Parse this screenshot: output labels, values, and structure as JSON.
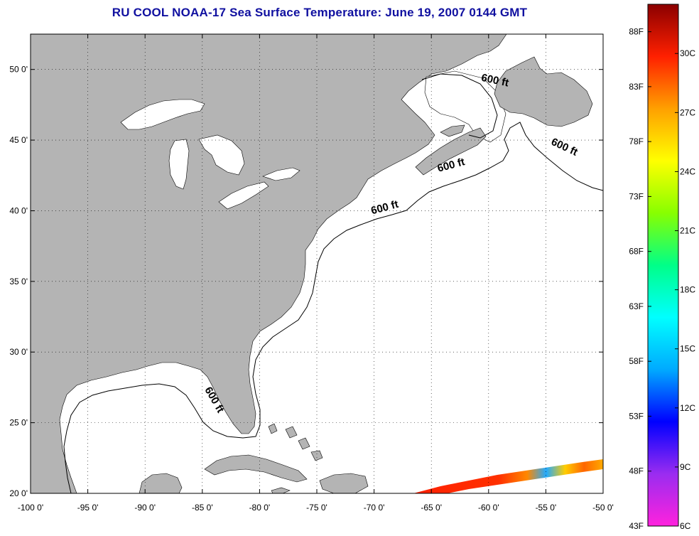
{
  "title": "RU COOL  NOAA-17  Sea Surface Temperature:  June 19, 2007 0144 GMT",
  "map": {
    "lon_range": [
      -100,
      -50
    ],
    "lat_range": [
      20,
      52.5
    ],
    "x_ticks": [
      {
        "value": -100,
        "label": "-100 0'"
      },
      {
        "value": -95,
        "label": "-95 0'"
      },
      {
        "value": -90,
        "label": "-90 0'"
      },
      {
        "value": -85,
        "label": "-85 0'"
      },
      {
        "value": -80,
        "label": "-80 0'"
      },
      {
        "value": -75,
        "label": "-75 0'"
      },
      {
        "value": -70,
        "label": "-70 0'"
      },
      {
        "value": -65,
        "label": "-65 0'"
      },
      {
        "value": -60,
        "label": "-60 0'"
      },
      {
        "value": -55,
        "label": "-55 0'"
      },
      {
        "value": -50,
        "label": "-50 0'"
      }
    ],
    "y_ticks": [
      {
        "value": 20,
        "label": "20 0'"
      },
      {
        "value": 25,
        "label": "25 0'"
      },
      {
        "value": 30,
        "label": "30 0'"
      },
      {
        "value": 35,
        "label": "35 0'"
      },
      {
        "value": 40,
        "label": "40 0'"
      },
      {
        "value": 45,
        "label": "45 0'"
      },
      {
        "value": 50,
        "label": "50 0'"
      }
    ],
    "grid": "dotted",
    "land_color": "#b4b4b4",
    "water_color": "#ffffff",
    "contour_labels": [
      {
        "text": "600 ft",
        "lon": -59.5,
        "lat": 49.0,
        "angle": 12
      },
      {
        "text": "600 ft",
        "lon": -53.5,
        "lat": 44.3,
        "angle": 25
      },
      {
        "text": "600 ft",
        "lon": -63.2,
        "lat": 43.0,
        "angle": -15
      },
      {
        "text": "600 ft",
        "lon": -69.0,
        "lat": 40.0,
        "angle": -15
      },
      {
        "text": "600 ft",
        "lon": -84.2,
        "lat": 26.5,
        "angle": 60
      }
    ]
  },
  "colorbar": {
    "palette": [
      "#ff22dd",
      "#9a2cf0",
      "#0000ff",
      "#00aaff",
      "#00ffff",
      "#00ff88",
      "#88ff00",
      "#ffff00",
      "#ffa000",
      "#ff2000",
      "#8b0000"
    ],
    "fahrenheit_labels": [
      {
        "value": 43,
        "label": "43F"
      },
      {
        "value": 48,
        "label": "48F"
      },
      {
        "value": 53,
        "label": "53F"
      },
      {
        "value": 58,
        "label": "58F"
      },
      {
        "value": 63,
        "label": "63F"
      },
      {
        "value": 68,
        "label": "68F"
      },
      {
        "value": 73,
        "label": "73F"
      },
      {
        "value": 78,
        "label": "78F"
      },
      {
        "value": 83,
        "label": "83F"
      },
      {
        "value": 88,
        "label": "88F"
      }
    ],
    "celsius_labels": [
      {
        "value": 6,
        "label": "6C"
      },
      {
        "value": 9,
        "label": "9C"
      },
      {
        "value": 12,
        "label": "12C"
      },
      {
        "value": 15,
        "label": "15C"
      },
      {
        "value": 18,
        "label": "18C"
      },
      {
        "value": 21,
        "label": "21C"
      },
      {
        "value": 24,
        "label": "24C"
      },
      {
        "value": 27,
        "label": "27C"
      },
      {
        "value": 30,
        "label": "30C"
      }
    ],
    "f_range": [
      43,
      90.5
    ],
    "c_range": [
      6,
      32.5
    ]
  }
}
